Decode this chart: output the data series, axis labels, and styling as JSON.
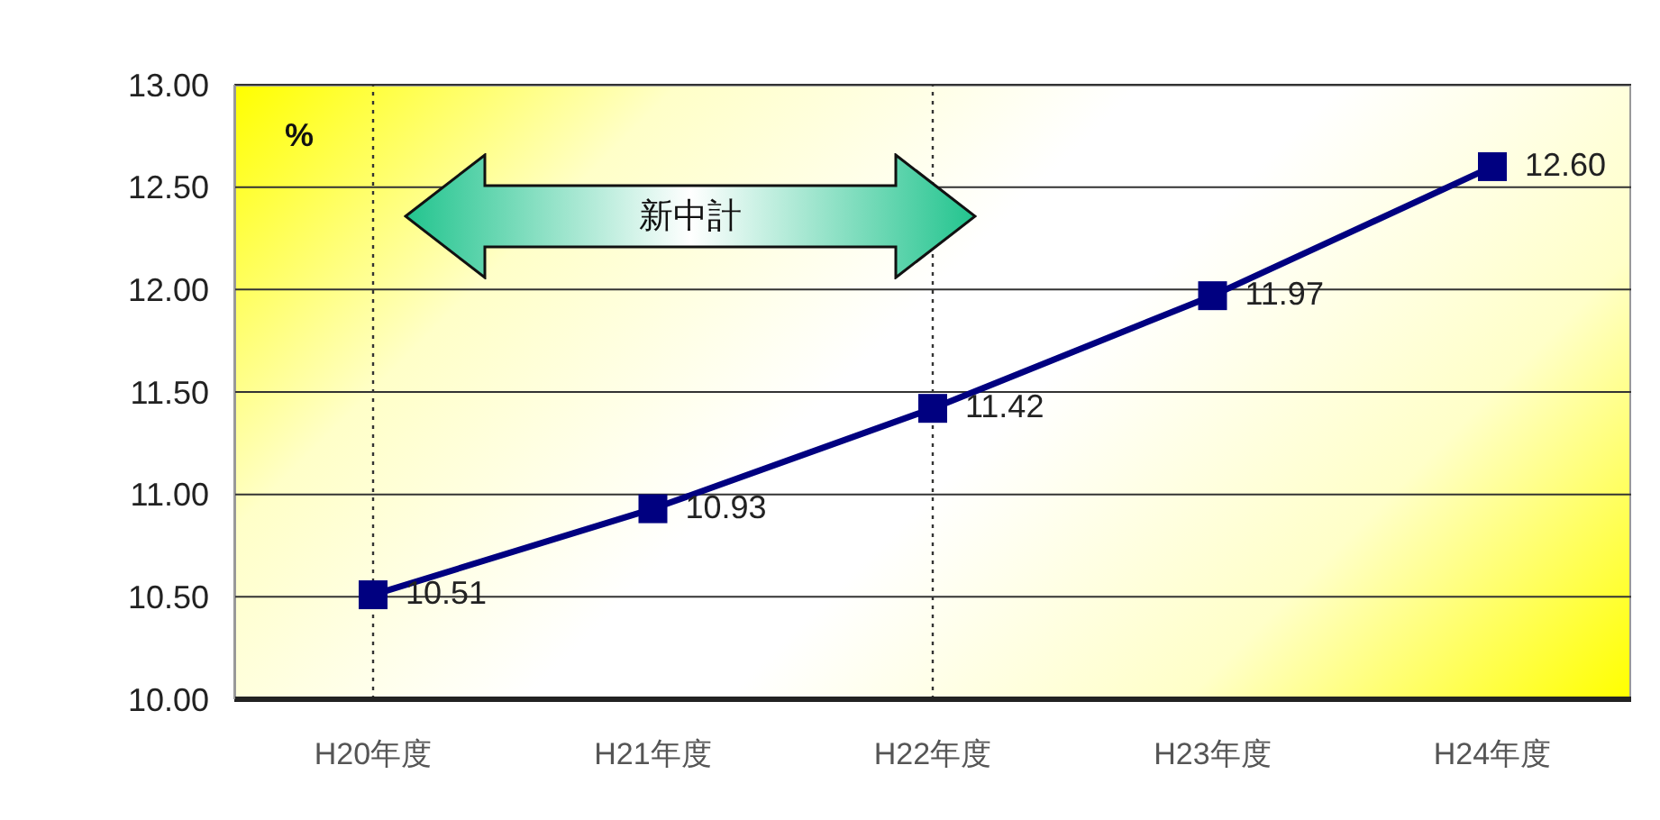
{
  "chart_data": {
    "type": "line",
    "ylabel": "%",
    "categories": [
      "H20年度",
      "H21年度",
      "H22年度",
      "H23年度",
      "H24年度"
    ],
    "series": [
      {
        "color": "#000080",
        "values": [
          10.51,
          10.93,
          11.42,
          11.97,
          12.6
        ],
        "value_labels": [
          "10.51",
          "10.93",
          "11.42",
          "11.97",
          "12.60"
        ]
      }
    ],
    "ylim": [
      10,
      13
    ],
    "yticks": [
      {
        "value": 10,
        "label": "10.00"
      },
      {
        "value": 10.5,
        "label": "10.50"
      },
      {
        "value": 11,
        "label": "11.00"
      },
      {
        "value": 11.5,
        "label": "11.50"
      },
      {
        "value": 12,
        "label": "12.00"
      },
      {
        "value": 12.5,
        "label": "12.50"
      },
      {
        "value": 13,
        "label": "13.00"
      }
    ],
    "grid": "y",
    "marker": "square",
    "line_style": "solid",
    "legend": false,
    "ref_lines": [
      {
        "axis": "x",
        "value": "H20年度",
        "color": "#333333",
        "line_style": "dotted"
      },
      {
        "axis": "x",
        "value": "H22年度",
        "color": "#333333",
        "line_style": "dotted"
      }
    ],
    "annotations": [
      "新中計"
    ]
  }
}
